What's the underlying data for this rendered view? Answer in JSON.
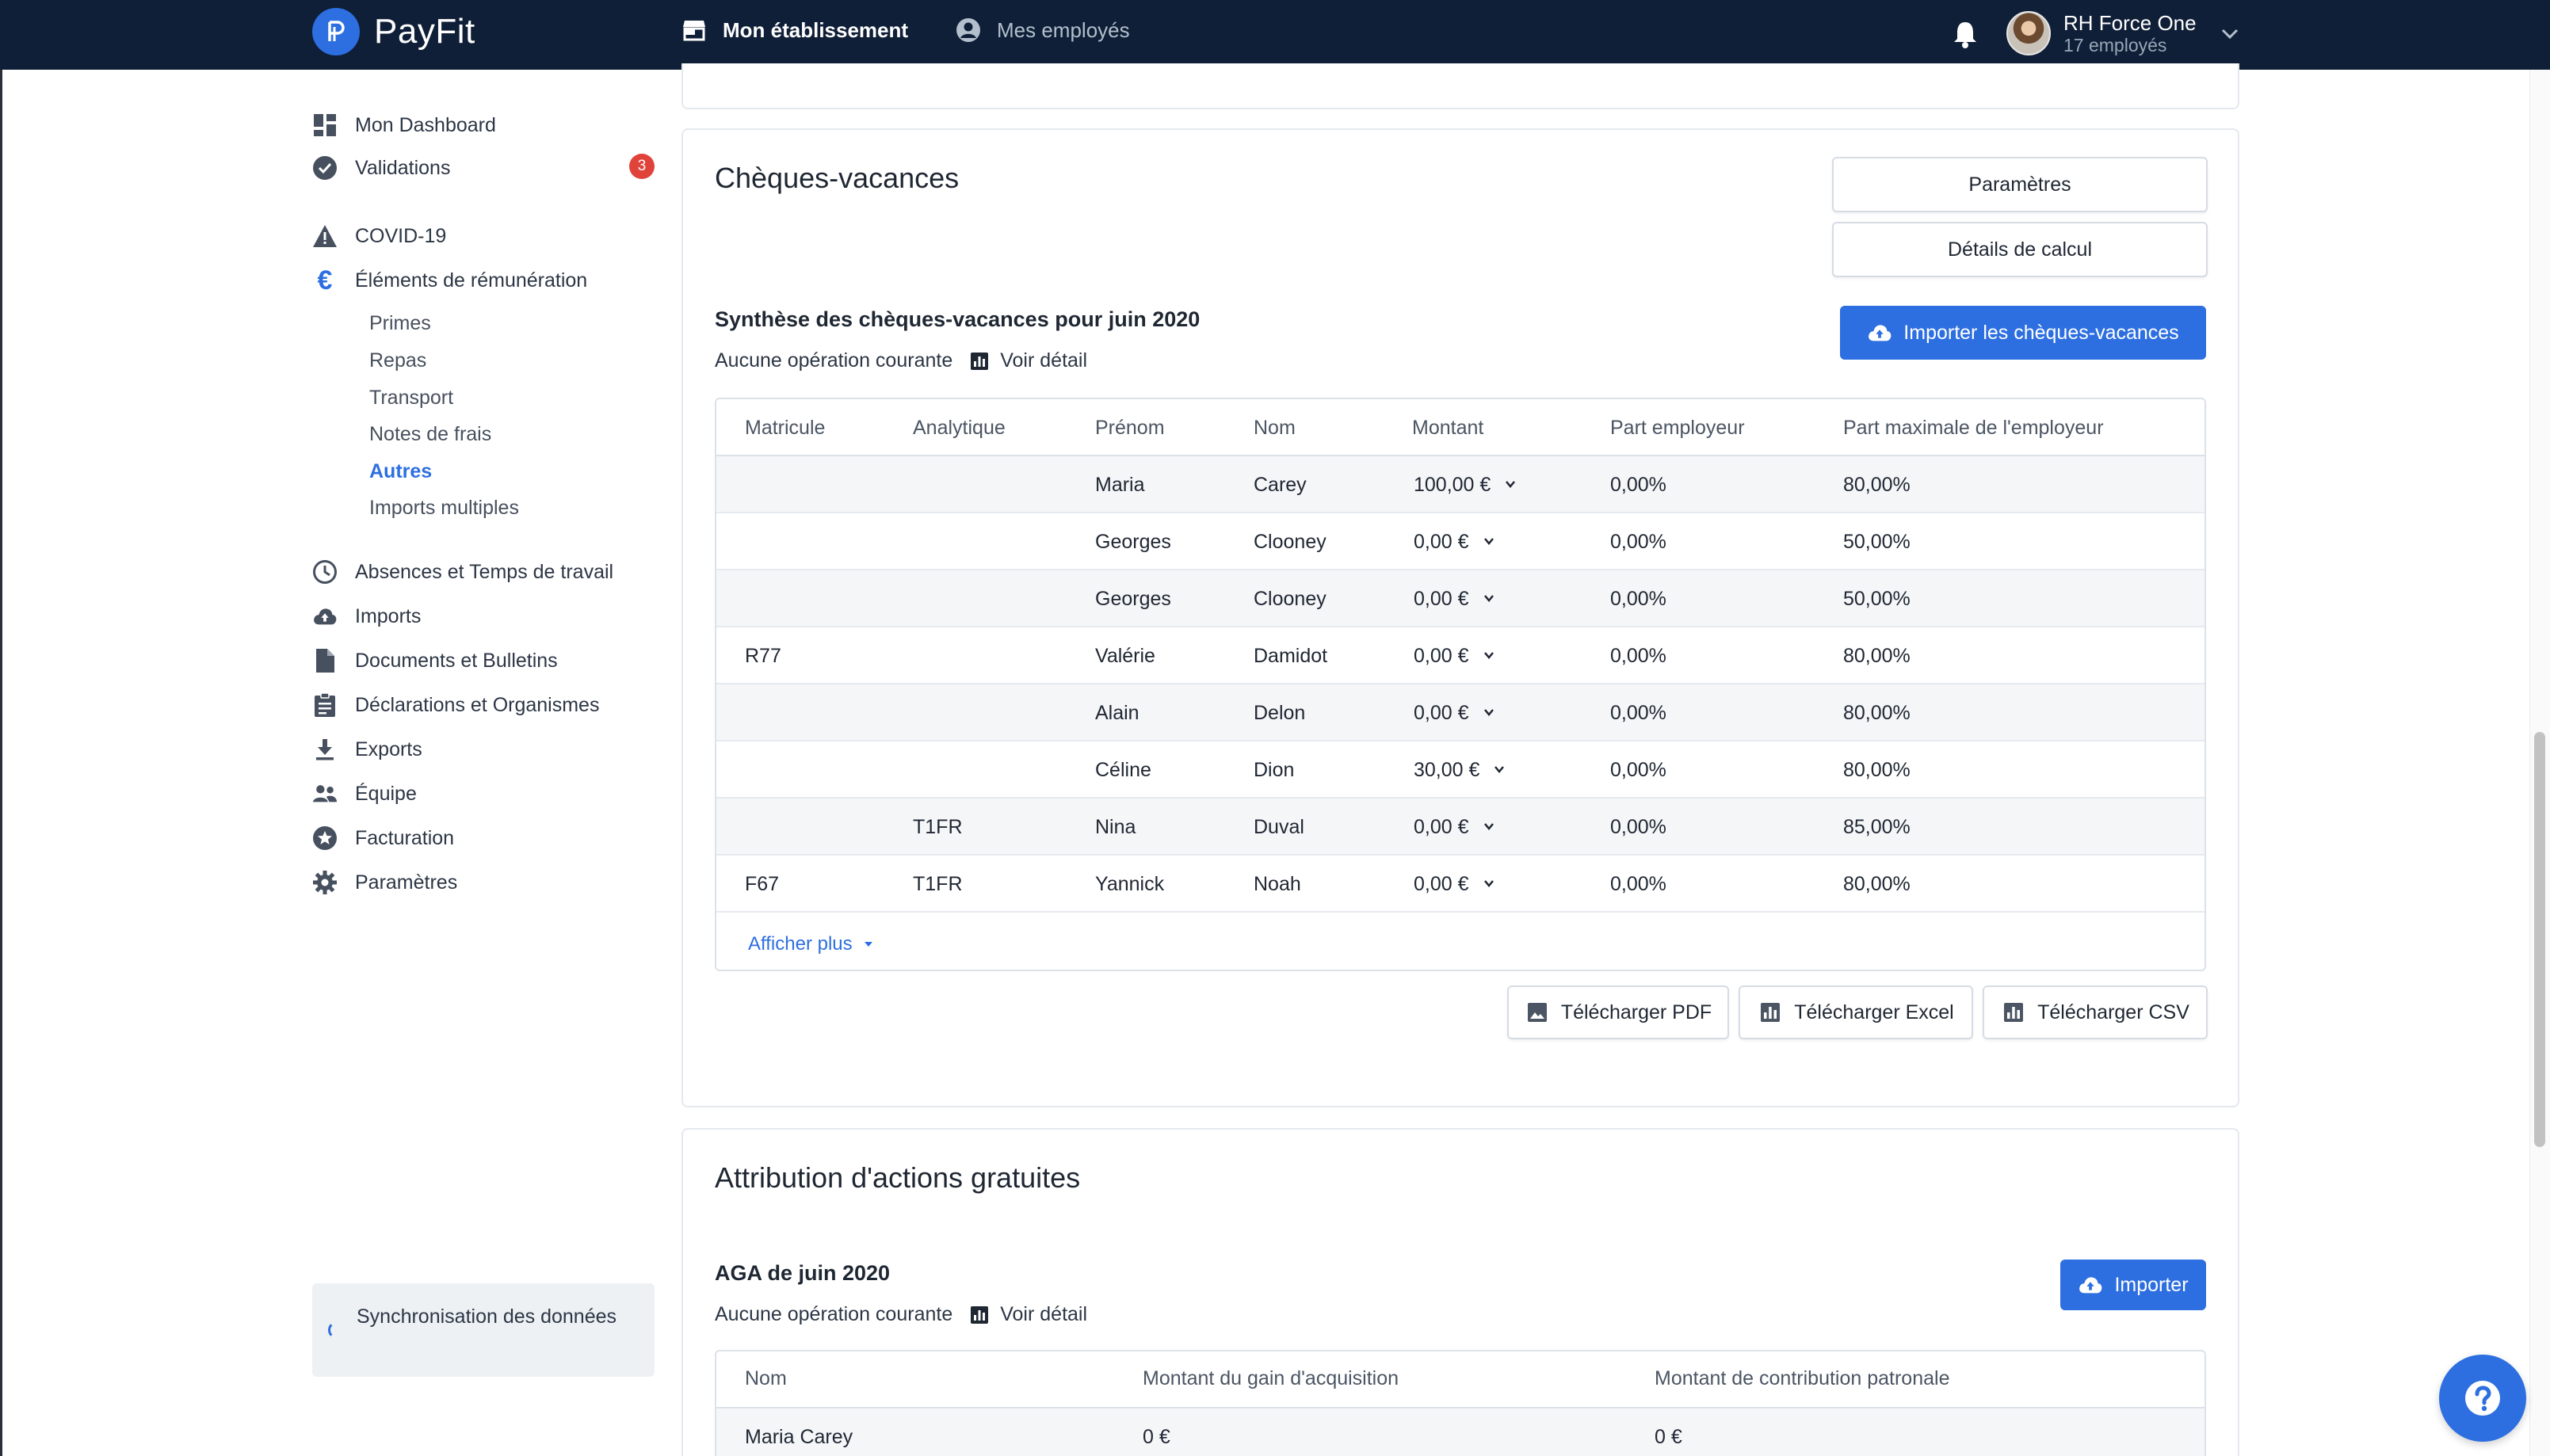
{
  "app": {
    "name": "PayFit"
  },
  "topnav": {
    "etablissement": "Mon établissement",
    "employes": "Mes employés"
  },
  "user": {
    "name": "RH Force One",
    "subtitle": "17 employés"
  },
  "sidebar": {
    "items": [
      {
        "label": "Mon Dashboard",
        "icon": "dashboard-icon"
      },
      {
        "label": "Validations",
        "icon": "check-circle-icon",
        "badge": "3"
      },
      {
        "label": "COVID-19",
        "icon": "warning-icon"
      },
      {
        "label": "Éléments de rémunération",
        "icon": "euro-icon"
      },
      {
        "label": "Absences et Temps de travail",
        "icon": "clock-icon"
      },
      {
        "label": "Imports",
        "icon": "cloud-upload-icon"
      },
      {
        "label": "Documents et Bulletins",
        "icon": "document-icon"
      },
      {
        "label": "Déclarations et Organismes",
        "icon": "clipboard-icon"
      },
      {
        "label": "Exports",
        "icon": "download-icon"
      },
      {
        "label": "Équipe",
        "icon": "team-icon"
      },
      {
        "label": "Facturation",
        "icon": "star-icon"
      },
      {
        "label": "Paramètres",
        "icon": "gear-icon"
      }
    ],
    "subitems": [
      "Primes",
      "Repas",
      "Transport",
      "Notes de frais",
      "Autres",
      "Imports multiples"
    ],
    "sync": "Synchronisation des données"
  },
  "cv": {
    "title": "Chèques-vacances",
    "btn_params": "Paramètres",
    "btn_details": "Détails de calcul",
    "btn_import": "Importer les chèques-vacances",
    "subtitle": "Synthèse des chèques-vacances pour juin 2020",
    "no_op": "Aucune opération courante",
    "voir": "Voir détail",
    "columns": [
      "Matricule",
      "Analytique",
      "Prénom",
      "Nom",
      "Montant",
      "Part employeur",
      "Part maximale de l'employeur"
    ],
    "rows": [
      {
        "matricule": "",
        "analytique": "",
        "prenom": "Maria",
        "nom": "Carey",
        "montant": "100,00 €",
        "part": "0,00%",
        "max": "80,00%"
      },
      {
        "matricule": "",
        "analytique": "",
        "prenom": "Georges",
        "nom": "Clooney",
        "montant": "0,00 €",
        "part": "0,00%",
        "max": "50,00%"
      },
      {
        "matricule": "",
        "analytique": "",
        "prenom": "Georges",
        "nom": "Clooney",
        "montant": "0,00 €",
        "part": "0,00%",
        "max": "50,00%"
      },
      {
        "matricule": "R77",
        "analytique": "",
        "prenom": "Valérie",
        "nom": "Damidot",
        "montant": "0,00 €",
        "part": "0,00%",
        "max": "80,00%"
      },
      {
        "matricule": "",
        "analytique": "",
        "prenom": "Alain",
        "nom": "Delon",
        "montant": "0,00 €",
        "part": "0,00%",
        "max": "80,00%"
      },
      {
        "matricule": "",
        "analytique": "",
        "prenom": "Céline",
        "nom": "Dion",
        "montant": "30,00 €",
        "part": "0,00%",
        "max": "80,00%"
      },
      {
        "matricule": "",
        "analytique": "T1FR",
        "prenom": "Nina",
        "nom": "Duval",
        "montant": "0,00 €",
        "part": "0,00%",
        "max": "85,00%"
      },
      {
        "matricule": "F67",
        "analytique": "T1FR",
        "prenom": "Yannick",
        "nom": "Noah",
        "montant": "0,00 €",
        "part": "0,00%",
        "max": "80,00%"
      }
    ],
    "more": "Afficher plus",
    "dl_pdf": "Télécharger PDF",
    "dl_excel": "Télécharger Excel",
    "dl_csv": "Télécharger CSV"
  },
  "aga": {
    "title": "Attribution d'actions gratuites",
    "subtitle": "AGA de juin 2020",
    "no_op": "Aucune opération courante",
    "voir": "Voir détail",
    "btn_import": "Importer",
    "columns": [
      "Nom",
      "Montant du gain d'acquisition",
      "Montant de contribution patronale"
    ],
    "rows": [
      {
        "nom": "Maria Carey",
        "gain": "0 €",
        "contribution": "0 €"
      }
    ]
  },
  "colors": {
    "topbar": "#0f1f37",
    "accent": "#2d6fe0",
    "badge": "#e0433a"
  }
}
